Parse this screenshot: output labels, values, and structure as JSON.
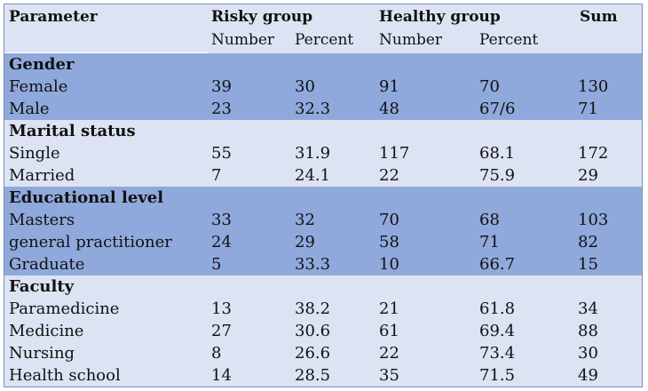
{
  "header": {
    "parameter": "Parameter",
    "risky_group": "Risky group",
    "healthy_group": "Healthy group",
    "sum": "Sum",
    "risky_number": "Number",
    "risky_percent": "Percent",
    "healthy_number": "Number",
    "healthy_percent": "Percent"
  },
  "sections": [
    {
      "title": "Gender",
      "rows": [
        [
          "Female",
          "39",
          "30",
          "91",
          "70",
          "130"
        ],
        [
          "Male",
          "23",
          "32.3",
          "48",
          "67/6",
          "71"
        ]
      ]
    },
    {
      "title": "Marital status",
      "rows": [
        [
          "Single",
          "55",
          "31.9",
          "117",
          "68.1",
          "172"
        ],
        [
          "Married",
          "7",
          "24.1",
          "22",
          "75.9",
          "29"
        ]
      ]
    },
    {
      "title": "Educational level",
      "rows": [
        [
          "Masters",
          "33",
          "32",
          "70",
          "68",
          "103"
        ],
        [
          "general practitioner",
          "24",
          "29",
          "58",
          "71",
          "82"
        ],
        [
          "Graduate",
          "5",
          "33.3",
          "10",
          "66.7",
          "15"
        ]
      ]
    },
    {
      "title": "Faculty",
      "rows": [
        [
          "Paramedicine",
          "13",
          "38.2",
          "21",
          "61.8",
          "34"
        ],
        [
          "Medicine",
          "27",
          "30.6",
          "61",
          "69.4",
          "88"
        ],
        [
          "Nursing",
          "8",
          "26.6",
          "22",
          "73.4",
          "30"
        ],
        [
          "Health school",
          "14",
          "28.5",
          "35",
          "71.5",
          "49"
        ]
      ]
    }
  ],
  "colors": {
    "dark_band": "#90a9dc",
    "light_band": "#dce3f2"
  }
}
